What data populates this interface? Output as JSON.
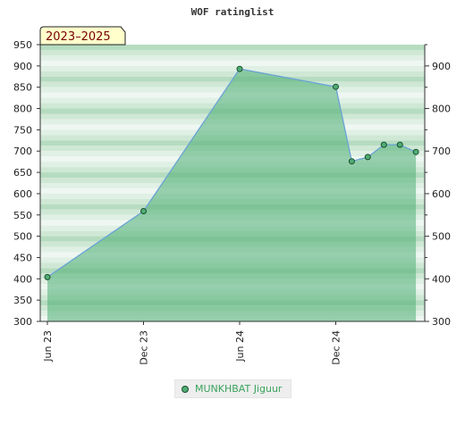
{
  "chart_data": {
    "type": "area",
    "title": "WOF ratinglist",
    "badge": "2023–2025",
    "xlabel": "",
    "ylabel": "",
    "ylim": [
      300,
      950
    ],
    "yticks": [
      300,
      350,
      400,
      450,
      500,
      550,
      600,
      650,
      700,
      750,
      800,
      850,
      900,
      950
    ],
    "right_yticks": [
      300,
      400,
      500,
      600,
      700,
      800,
      900
    ],
    "xticks": [
      {
        "label": "Jun 23",
        "date": "2023-06"
      },
      {
        "label": "Dec 23",
        "date": "2023-12"
      },
      {
        "label": "Jun 24",
        "date": "2024-06"
      },
      {
        "label": "Dec 24",
        "date": "2024-12"
      }
    ],
    "grid": true,
    "legend_position": "bottom",
    "colors": {
      "fill": "#4fae74",
      "line": "#6aa3d6",
      "marker": "#4fae74",
      "marker_edge": "#1c4d2e",
      "band_dark": "#b6dcc0",
      "band_light": "#eef7f1",
      "badge_bg": "#ffffcc"
    },
    "series": [
      {
        "name": "MUNKHBAT Jiguur",
        "points": [
          {
            "date": "2023-06",
            "value": 404
          },
          {
            "date": "2023-12",
            "value": 559
          },
          {
            "date": "2024-06",
            "value": 893
          },
          {
            "date": "2024-12",
            "value": 851
          },
          {
            "date": "2025-01",
            "value": 676
          },
          {
            "date": "2025-02",
            "value": 686
          },
          {
            "date": "2025-03",
            "value": 715
          },
          {
            "date": "2025-04",
            "value": 715
          },
          {
            "date": "2025-05",
            "value": 698
          }
        ]
      }
    ]
  }
}
